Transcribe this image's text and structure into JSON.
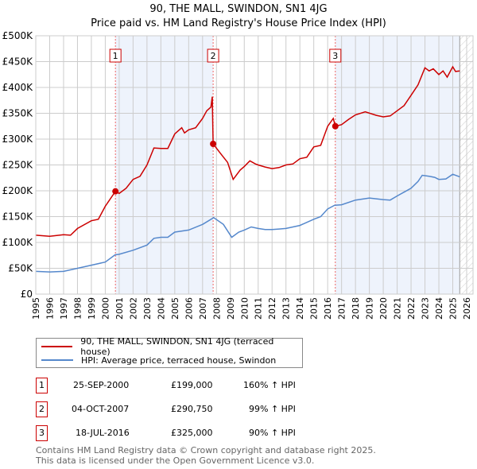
{
  "chart_data": {
    "type": "line",
    "title": "90, THE MALL, SWINDON, SN1 4JG",
    "subtitle": "Price paid vs. HM Land Registry's House Price Index (HPI)",
    "xlim": [
      1995,
      2026
    ],
    "ylim": [
      0,
      500000
    ],
    "yticks": [
      {
        "v": 0,
        "label": "£0"
      },
      {
        "v": 50000,
        "label": "£50K"
      },
      {
        "v": 100000,
        "label": "£100K"
      },
      {
        "v": 150000,
        "label": "£150K"
      },
      {
        "v": 200000,
        "label": "£200K"
      },
      {
        "v": 250000,
        "label": "£250K"
      },
      {
        "v": 300000,
        "label": "£300K"
      },
      {
        "v": 350000,
        "label": "£350K"
      },
      {
        "v": 400000,
        "label": "£400K"
      },
      {
        "v": 450000,
        "label": "£450K"
      },
      {
        "v": 500000,
        "label": "£500K"
      }
    ],
    "xticks": [
      "1995",
      "1996",
      "1997",
      "1998",
      "1999",
      "2000",
      "2001",
      "2002",
      "2003",
      "2004",
      "2005",
      "2006",
      "2007",
      "2008",
      "2009",
      "2010",
      "2011",
      "2012",
      "2013",
      "2014",
      "2015",
      "2016",
      "2017",
      "2018",
      "2019",
      "2020",
      "2021",
      "2022",
      "2023",
      "2024",
      "2025",
      "2026"
    ],
    "series": [
      {
        "name": "90, THE MALL, SWINDON, SN1 4JG (terraced house)",
        "color": "#cc0000",
        "x": [
          1995,
          1996,
          1997,
          1997.5,
          1998,
          1999,
          1999.5,
          2000,
          2000.73,
          2001,
          2001.5,
          2002,
          2002.5,
          2003,
          2003.5,
          2004,
          2004.5,
          2005,
          2005.5,
          2005.7,
          2006,
          2006.5,
          2007,
          2007.3,
          2007.6,
          2007.7,
          2007.76,
          2008.3,
          2008.8,
          2009.2,
          2009.7,
          2010,
          2010.4,
          2010.8,
          2011,
          2011.5,
          2012,
          2012.5,
          2013,
          2013.5,
          2014,
          2014.5,
          2015,
          2015.5,
          2016,
          2016.4,
          2016.55,
          2017,
          2017.5,
          2018,
          2018.7,
          2019.5,
          2020,
          2020.5,
          2021,
          2021.5,
          2022,
          2022.5,
          2023,
          2023.3,
          2023.6,
          2024,
          2024.3,
          2024.6,
          2025,
          2025.2,
          2025.5
        ],
        "y": [
          114000,
          112000,
          115000,
          114000,
          127000,
          142000,
          145000,
          170000,
          199000,
          195000,
          205000,
          222000,
          228000,
          250000,
          283000,
          282000,
          282000,
          310000,
          322000,
          312000,
          318000,
          322000,
          340000,
          355000,
          362000,
          382000,
          290750,
          272000,
          255000,
          222000,
          240000,
          247000,
          258000,
          252000,
          250000,
          246000,
          243000,
          245000,
          250000,
          252000,
          262000,
          265000,
          285000,
          288000,
          325000,
          340000,
          325000,
          328000,
          338000,
          347000,
          353000,
          346000,
          343000,
          345000,
          355000,
          365000,
          385000,
          405000,
          438000,
          432000,
          436000,
          425000,
          432000,
          420000,
          440000,
          431000,
          432000
        ]
      },
      {
        "name": "HPI: Average price, terraced house, Swindon",
        "color": "#5588cc",
        "x": [
          1995,
          1996,
          1997,
          1998,
          1999,
          2000,
          2000.7,
          2001,
          2002,
          2003,
          2003.5,
          2004,
          2004.5,
          2005,
          2006,
          2007,
          2007.8,
          2008.5,
          2009.1,
          2009.6,
          2010,
          2010.5,
          2011,
          2011.5,
          2012,
          2012.5,
          2013,
          2014,
          2015,
          2015.5,
          2016,
          2016.5,
          2017,
          2018,
          2019,
          2020,
          2020.5,
          2021,
          2022,
          2022.5,
          2022.8,
          2023.3,
          2023.7,
          2024,
          2024.5,
          2025,
          2025.5
        ],
        "y": [
          44000,
          43000,
          44000,
          50000,
          56000,
          62000,
          76000,
          77000,
          85000,
          95000,
          108000,
          110000,
          110000,
          120000,
          124000,
          135000,
          148000,
          135000,
          110000,
          120000,
          124000,
          130000,
          127000,
          125000,
          125000,
          126000,
          127000,
          133000,
          145000,
          150000,
          165000,
          172000,
          173000,
          182000,
          186000,
          183000,
          182000,
          190000,
          205000,
          218000,
          230000,
          228000,
          226000,
          222000,
          223000,
          232000,
          227000
        ]
      }
    ],
    "transactions": [
      {
        "num": "1",
        "date": "25-SEP-2000",
        "x": 2000.73,
        "price": "£199,000",
        "value": 199000,
        "hpi": "160% ↑ HPI"
      },
      {
        "num": "2",
        "date": "04-OCT-2007",
        "x": 2007.76,
        "price": "£290,750",
        "value": 290750,
        "hpi": "99% ↑ HPI"
      },
      {
        "num": "3",
        "date": "18-JUL-2016",
        "x": 2016.55,
        "price": "£325,000",
        "value": 325000,
        "hpi": "90% ↑ HPI"
      }
    ],
    "shaded": [
      [
        2000.73,
        2007.76
      ],
      [
        2016.55,
        2025.5
      ]
    ],
    "hatched_from": 2025.5,
    "legend": "bottom"
  },
  "footer": {
    "line1": "Contains HM Land Registry data © Crown copyright and database right 2025.",
    "line2": "This data is licensed under the Open Government Licence v3.0."
  }
}
